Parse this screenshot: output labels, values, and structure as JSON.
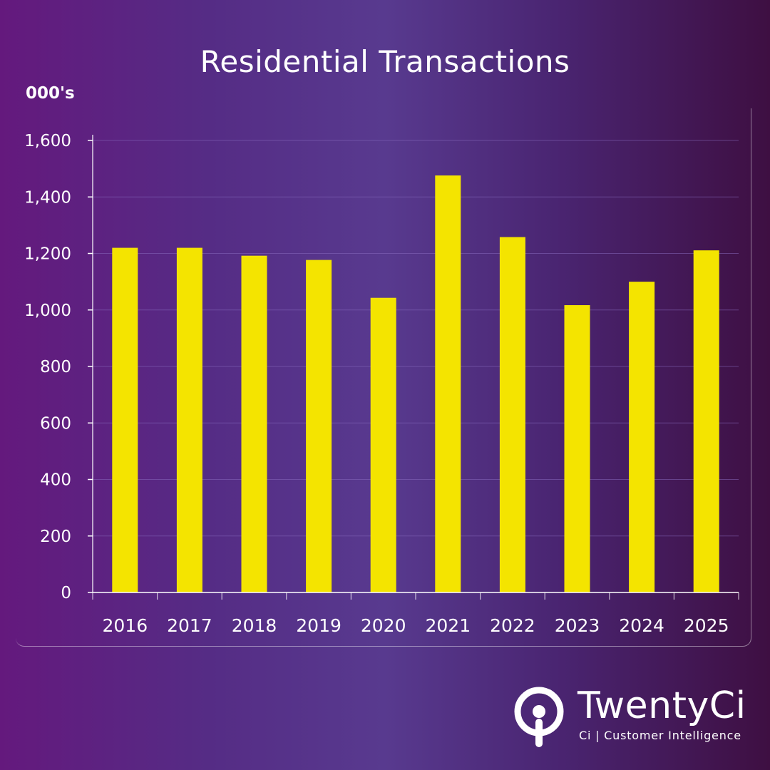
{
  "title": "Residential Transactions",
  "unit_label": "000's",
  "colors": {
    "bar": "#f4e400",
    "axis": "#ffffff",
    "grid": "#8a6cc0",
    "text": "#ffffff"
  },
  "chart_data": {
    "type": "bar",
    "title": "Residential Transactions",
    "ylabel": "000's",
    "xlabel": "",
    "categories": [
      "2016",
      "2017",
      "2018",
      "2019",
      "2020",
      "2021",
      "2022",
      "2023",
      "2024",
      "2025"
    ],
    "values": [
      1220,
      1220,
      1192,
      1177,
      1043,
      1476,
      1258,
      1017,
      1100,
      1211
    ],
    "ylim": [
      0,
      1600
    ],
    "yticks": [
      0,
      200,
      400,
      600,
      800,
      1000,
      1200,
      1400,
      1600
    ],
    "ytick_labels": [
      "0",
      "200",
      "400",
      "600",
      "800",
      "1,000",
      "1,200",
      "1,400",
      "1,600"
    ],
    "grid": true
  },
  "logo": {
    "name": "TwentyCi",
    "tagline": "Ci | Customer Intelligence",
    "icon": "location-pin-icon"
  }
}
